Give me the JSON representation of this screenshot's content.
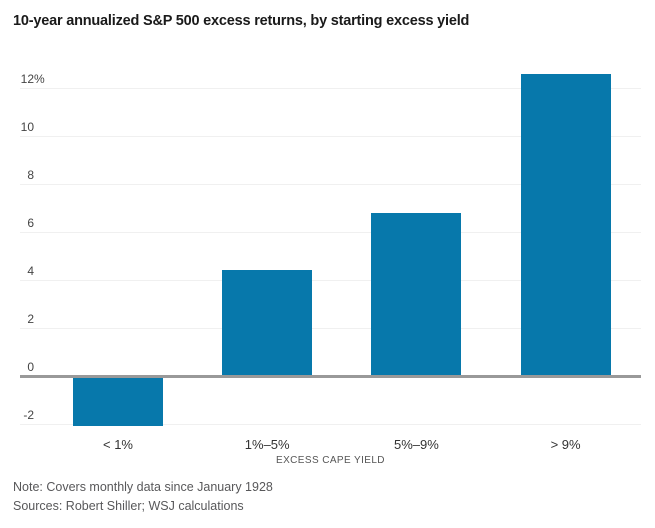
{
  "header": {
    "title": "10-year annualized S&P 500 excess returns, by starting excess yield"
  },
  "chart_data": {
    "type": "bar",
    "title": "10-year annualized S&P 500 excess returns, by starting excess yield",
    "categories": [
      "< 1%",
      "1%–5%",
      "5%–9%",
      "> 9%"
    ],
    "values": [
      -2.1,
      4.4,
      6.8,
      12.6
    ],
    "xlabel": "EXCESS CAPE YIELD",
    "ylabel": "",
    "ylim": [
      -2,
      12
    ],
    "y_ticks": [
      12,
      10,
      8,
      6,
      4,
      2,
      0,
      -2
    ],
    "y_tick_labels": [
      "12%",
      "10",
      "8",
      "6",
      "4",
      "2",
      "0",
      "-2"
    ],
    "grid": true,
    "legend": "none",
    "bar_color": "#0778ab",
    "zero_line_color": "#999999",
    "gridline_color": "#f0f0f0"
  },
  "footer": {
    "note": "Note: Covers monthly data since January 1928",
    "sources": "Sources: Robert Shiller; WSJ calculations"
  }
}
